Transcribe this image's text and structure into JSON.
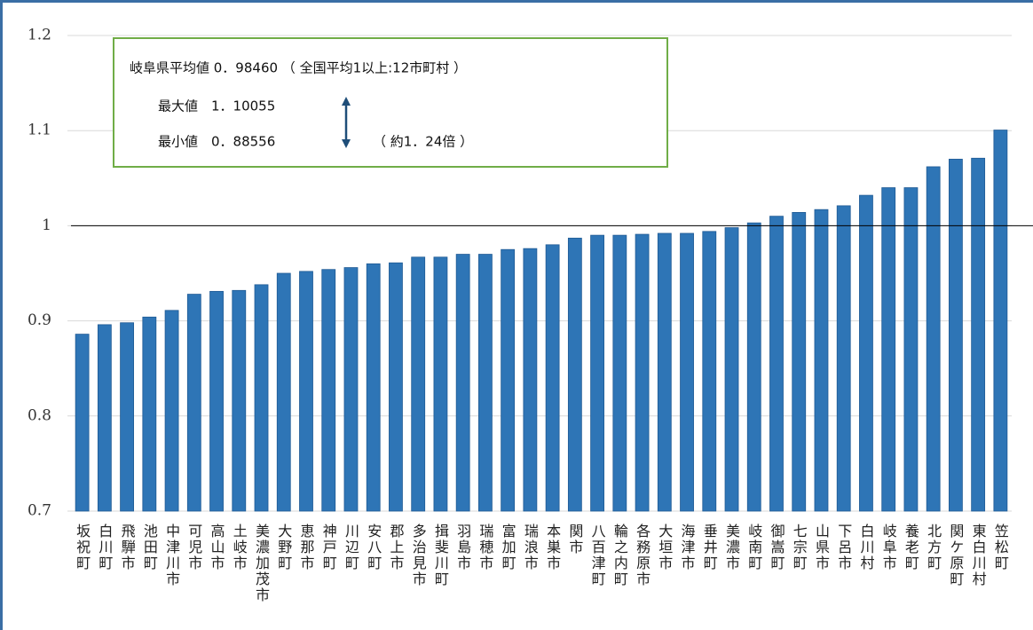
{
  "chart_data": {
    "type": "bar",
    "categories": [
      "坂祝町",
      "白川町",
      "飛騨市",
      "池田町",
      "中津川市",
      "可児市",
      "高山市",
      "土岐市",
      "美濃加茂市",
      "大野町",
      "恵那市",
      "神戸町",
      "川辺町",
      "安八町",
      "郡上市",
      "多治見市",
      "揖斐川町",
      "羽島市",
      "瑞穂市",
      "富加町",
      "瑞浪市",
      "本巣市",
      "関市",
      "八百津町",
      "輪之内町",
      "各務原市",
      "大垣市",
      "海津市",
      "垂井町",
      "美濃市",
      "岐南町",
      "御嵩町",
      "七宗町",
      "山県市",
      "下呂市",
      "白川村",
      "岐阜市",
      "養老町",
      "北方町",
      "関ケ原町",
      "東白川村",
      "笠松町"
    ],
    "values": [
      0.886,
      0.896,
      0.898,
      0.904,
      0.911,
      0.928,
      0.931,
      0.932,
      0.938,
      0.95,
      0.952,
      0.954,
      0.956,
      0.96,
      0.961,
      0.967,
      0.967,
      0.97,
      0.97,
      0.975,
      0.976,
      0.98,
      0.987,
      0.99,
      0.99,
      0.991,
      0.992,
      0.992,
      0.994,
      0.998,
      1.003,
      1.01,
      1.014,
      1.017,
      1.021,
      1.032,
      1.04,
      1.04,
      1.062,
      1.07,
      1.071,
      1.1006
    ],
    "color": "#2e75b6",
    "ylim": [
      0.7,
      1.2
    ],
    "yticks": [
      0.7,
      0.8,
      0.9,
      1,
      1.1,
      1.2
    ],
    "grid": true,
    "reference_line": 1,
    "annotations": [
      "岐阜県平均値 0．98460 （ 全国平均1以上:12市町村 ）",
      "最大値　1．10055",
      "最小値　0．88556",
      "（ 約1．24倍 ）"
    ]
  }
}
